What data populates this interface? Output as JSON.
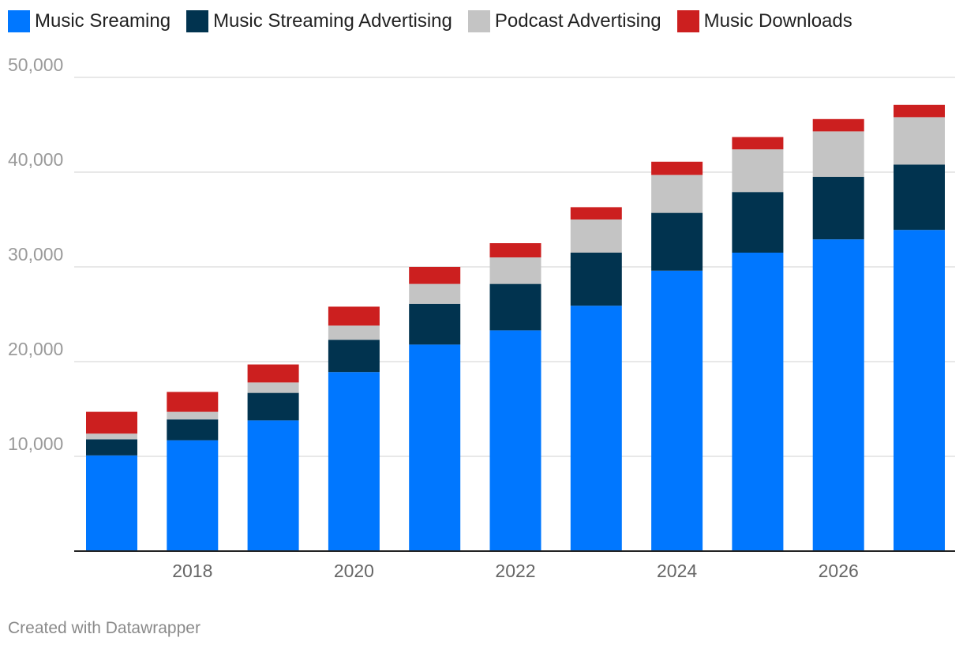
{
  "chart_data": {
    "type": "bar",
    "stacked": true,
    "categories": [
      "2017",
      "2018",
      "2019",
      "2020",
      "2021",
      "2022",
      "2023",
      "2024",
      "2025",
      "2026",
      "2027"
    ],
    "x_tick_labels": [
      "2018",
      "2020",
      "2022",
      "2024",
      "2026"
    ],
    "series": [
      {
        "name": "Music Sreaming",
        "color": "#0077ff",
        "values": [
          10100,
          11700,
          13800,
          18900,
          21800,
          23300,
          25900,
          29600,
          31500,
          32900,
          33900
        ]
      },
      {
        "name": "Music Streaming Advertising",
        "color": "#01334f",
        "values": [
          1700,
          2200,
          2900,
          3400,
          4300,
          4900,
          5600,
          6100,
          6400,
          6600,
          6900
        ]
      },
      {
        "name": "Podcast Advertising",
        "color": "#c4c4c4",
        "values": [
          600,
          800,
          1100,
          1500,
          2100,
          2800,
          3500,
          4000,
          4500,
          4800,
          5000
        ]
      },
      {
        "name": "Music Downloads",
        "color": "#cc1f1f",
        "values": [
          2300,
          2100,
          1900,
          2000,
          1800,
          1500,
          1300,
          1400,
          1300,
          1300,
          1300
        ]
      }
    ],
    "y_ticks": [
      10000,
      20000,
      30000,
      40000,
      50000
    ],
    "y_tick_labels": [
      "10,000",
      "20,000",
      "30,000",
      "40,000",
      "50,000"
    ],
    "ylim": [
      0,
      50000
    ],
    "legend_position": "top-left",
    "grid": true
  },
  "footer": {
    "credit": "Created with Datawrapper"
  }
}
